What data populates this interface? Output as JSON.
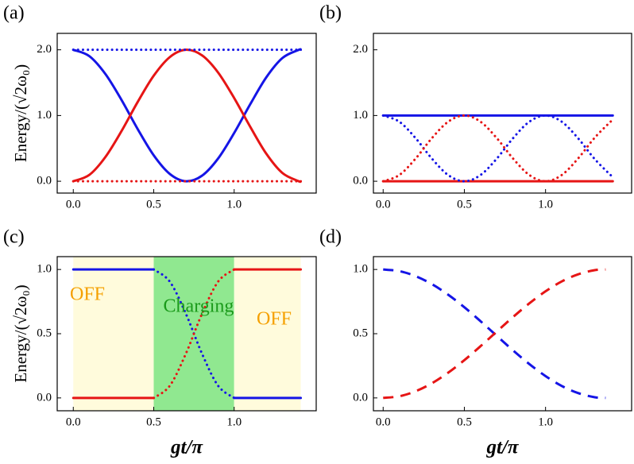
{
  "chart_data": [
    {
      "type": "line",
      "label": "(a)",
      "ylabel": "Energy/(√2ω₀)",
      "x": [
        0,
        0.1,
        0.2,
        0.3,
        0.4,
        0.5,
        0.6,
        0.7,
        0.8,
        0.9,
        1.0,
        1.1,
        1.2,
        1.3,
        1.4,
        1.414
      ],
      "series": [
        {
          "color": "#1515e6",
          "style": "solid",
          "values": [
            2.0,
            1.903,
            1.63,
            1.236,
            0.795,
            0.394,
            0.111,
            0.0,
            0.084,
            0.345,
            0.734,
            1.172,
            1.582,
            1.875,
            1.998,
            2.0
          ]
        },
        {
          "color": "#e61515",
          "style": "solid",
          "values": [
            0.0,
            0.097,
            0.37,
            0.764,
            1.205,
            1.606,
            1.889,
            2.0,
            1.916,
            1.655,
            1.266,
            0.828,
            0.418,
            0.125,
            0.002,
            0.0
          ]
        },
        {
          "color": "#1515e6",
          "style": "dotted",
          "values": [
            2,
            2,
            2,
            2,
            2,
            2,
            2,
            2,
            2,
            2,
            2,
            2,
            2,
            2,
            2,
            2
          ]
        },
        {
          "color": "#e61515",
          "style": "dotted",
          "values": [
            0,
            0,
            0,
            0,
            0,
            0,
            0,
            0,
            0,
            0,
            0,
            0,
            0,
            0,
            0,
            0
          ]
        }
      ],
      "xlim": [
        -0.1,
        1.51
      ],
      "ylim": [
        -0.18,
        2.25
      ],
      "xticks": [
        {
          "value": 0,
          "label": "0.0"
        },
        {
          "value": 0.5,
          "label": "0.5"
        },
        {
          "value": 1,
          "label": "1.0"
        }
      ],
      "yticks": [
        {
          "value": 0,
          "label": "0.0"
        },
        {
          "value": 1,
          "label": "1.0"
        },
        {
          "value": 2,
          "label": "2.0"
        }
      ]
    },
    {
      "type": "line",
      "label": "(b)",
      "x": [
        0,
        0.1,
        0.2,
        0.3,
        0.4,
        0.5,
        0.6,
        0.7,
        0.8,
        0.9,
        1.0,
        1.1,
        1.2,
        1.3,
        1.4,
        1.414
      ],
      "series": [
        {
          "color": "#1515e6",
          "style": "solid",
          "values": [
            1,
            1,
            1,
            1,
            1,
            1,
            1,
            1,
            1,
            1,
            1,
            1,
            1,
            1,
            1,
            1
          ]
        },
        {
          "color": "#e61515",
          "style": "solid",
          "values": [
            0,
            0,
            0,
            0,
            0,
            0,
            0,
            0,
            0,
            0,
            0,
            0,
            0,
            0,
            0,
            0
          ]
        },
        {
          "color": "#1515e6",
          "style": "dotted",
          "values": [
            1,
            0.905,
            0.655,
            0.345,
            0.095,
            0,
            0.095,
            0.345,
            0.655,
            0.905,
            1,
            0.905,
            0.655,
            0.345,
            0.095,
            0.071
          ]
        },
        {
          "color": "#e61515",
          "style": "dotted",
          "values": [
            0,
            0.095,
            0.345,
            0.655,
            0.905,
            1,
            0.905,
            0.655,
            0.345,
            0.095,
            0,
            0.095,
            0.345,
            0.655,
            0.905,
            0.929
          ]
        }
      ],
      "xlim": [
        -0.06,
        1.53
      ],
      "ylim": [
        -0.18,
        2.25
      ],
      "xticks": [
        {
          "value": 0,
          "label": "0.0"
        },
        {
          "value": 0.5,
          "label": "0.5"
        },
        {
          "value": 1,
          "label": "1.0"
        }
      ],
      "yticks": [
        {
          "value": 0,
          "label": "0.0"
        },
        {
          "value": 1,
          "label": "1.0"
        },
        {
          "value": 2,
          "label": "2.0"
        }
      ]
    },
    {
      "type": "line",
      "label": "(c)",
      "ylabel": "Energy/(√2ω₀)",
      "xlabel": "gt/π",
      "x": [
        0,
        0.1,
        0.2,
        0.3,
        0.4,
        0.5,
        0.6,
        0.7,
        0.8,
        0.9,
        1.0,
        1.1,
        1.2,
        1.3,
        1.4,
        1.414
      ],
      "regions": [
        {
          "x": [
            0,
            0.5
          ],
          "color": "#fffbdc"
        },
        {
          "x": [
            0.5,
            1.0
          ],
          "color": "#90e890"
        },
        {
          "x": [
            1.0,
            1.414
          ],
          "color": "#fffbdc"
        }
      ],
      "annotations": [
        {
          "text": "OFF",
          "color": "#f5a000"
        },
        {
          "text": "Charging",
          "color": "#1a9a1a"
        },
        {
          "text": "OFF",
          "color": "#f5a000"
        }
      ],
      "series": [
        {
          "color": "#1515e6",
          "style": "solid",
          "values": [
            1,
            1,
            1,
            1,
            1,
            1,
            null,
            null,
            null,
            null,
            0,
            0,
            0,
            0,
            0,
            0
          ]
        },
        {
          "color": "#e61515",
          "style": "solid",
          "values": [
            0,
            0,
            0,
            0,
            0,
            0,
            null,
            null,
            null,
            null,
            1,
            1,
            1,
            1,
            1,
            1
          ]
        },
        {
          "color": "#1515e6",
          "style": "dotted",
          "values": [
            null,
            null,
            null,
            null,
            null,
            1,
            0.905,
            0.655,
            0.345,
            0.095,
            0,
            null,
            null,
            null,
            null,
            null
          ]
        },
        {
          "color": "#e61515",
          "style": "dotted",
          "values": [
            null,
            null,
            null,
            null,
            null,
            0,
            0.095,
            0.345,
            0.655,
            0.905,
            1,
            null,
            null,
            null,
            null,
            null
          ]
        }
      ],
      "xlim": [
        -0.1,
        1.51
      ],
      "ylim": [
        -0.1,
        1.1
      ],
      "xticks": [
        {
          "value": 0,
          "label": "0.0"
        },
        {
          "value": 0.5,
          "label": "0.5"
        },
        {
          "value": 1,
          "label": "1.0"
        }
      ],
      "yticks": [
        {
          "value": 0,
          "label": "0.0"
        },
        {
          "value": 0.5,
          "label": "0.5"
        },
        {
          "value": 1,
          "label": "1.0"
        }
      ]
    },
    {
      "type": "line",
      "label": "(d)",
      "xlabel": "gt/π",
      "x": [
        0,
        0.1,
        0.2,
        0.3,
        0.4,
        0.5,
        0.6,
        0.7,
        0.8,
        0.9,
        1.0,
        1.1,
        1.2,
        1.3,
        1.37
      ],
      "series": [
        {
          "color": "#1515e6",
          "style": "dashed",
          "values": [
            1,
            0.987,
            0.948,
            0.886,
            0.804,
            0.706,
            0.597,
            0.483,
            0.37,
            0.264,
            0.17,
            0.093,
            0.038,
            0.006,
            0
          ]
        },
        {
          "color": "#e61515",
          "style": "dashed",
          "values": [
            0,
            0.013,
            0.052,
            0.114,
            0.196,
            0.294,
            0.403,
            0.517,
            0.63,
            0.736,
            0.83,
            0.907,
            0.962,
            0.994,
            1
          ]
        }
      ],
      "xlim": [
        -0.06,
        1.53
      ],
      "ylim": [
        -0.1,
        1.1
      ],
      "xticks": [
        {
          "value": 0,
          "label": "0.0"
        },
        {
          "value": 0.5,
          "label": "0.5"
        },
        {
          "value": 1,
          "label": "1.0"
        }
      ],
      "yticks": [
        {
          "value": 0,
          "label": "0.0"
        },
        {
          "value": 0.5,
          "label": "0.5"
        },
        {
          "value": 1,
          "label": "1.0"
        }
      ]
    }
  ]
}
